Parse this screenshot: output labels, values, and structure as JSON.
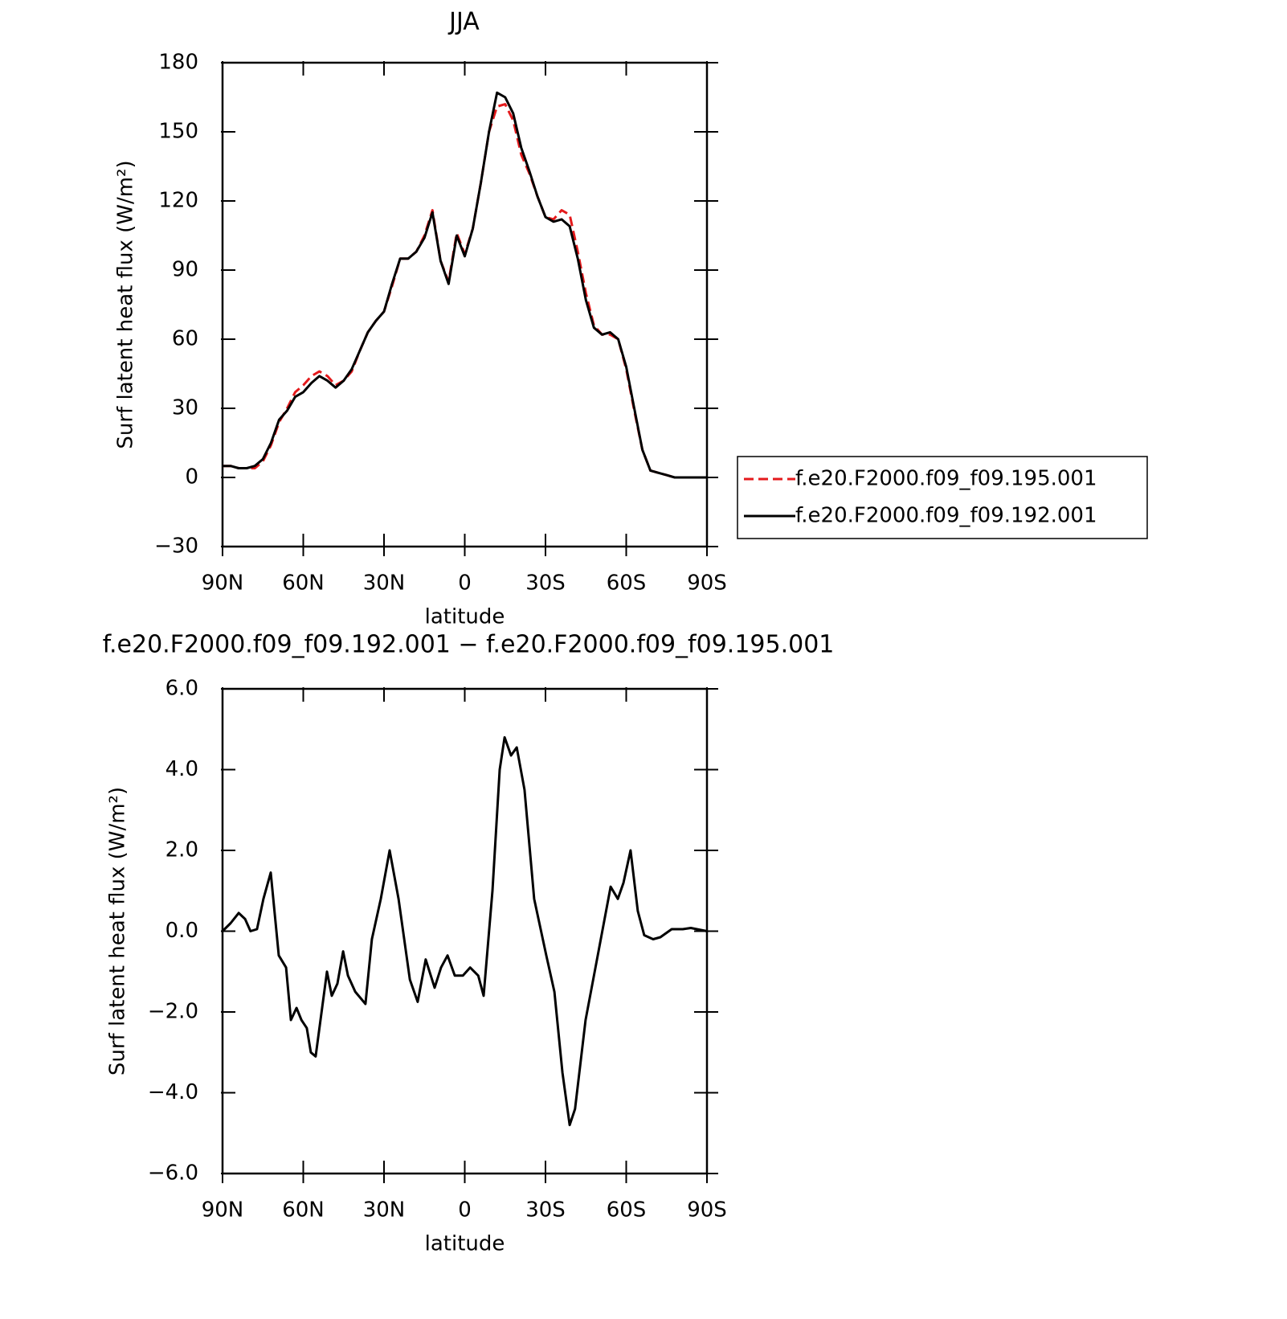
{
  "chart_data": [
    {
      "type": "line",
      "title": "JJA",
      "xlabel": "latitude",
      "ylabel": "Surf latent heat flux (W/m²)",
      "xlim": [
        90,
        -90
      ],
      "xticks": [
        {
          "value": 90,
          "label": "90N"
        },
        {
          "value": 60,
          "label": "60N"
        },
        {
          "value": 30,
          "label": "30N"
        },
        0,
        {
          "value": -30,
          "label": "30S"
        },
        {
          "value": -60,
          "label": "60S"
        },
        {
          "value": -90,
          "label": "90S"
        }
      ],
      "ylim": [
        -30,
        180
      ],
      "yticks": [
        {
          "value": -30,
          "label": "−30"
        },
        0,
        30,
        60,
        90,
        120,
        150,
        180
      ],
      "legend": "outside-right",
      "x": [
        90,
        87,
        84,
        81,
        78,
        75,
        72,
        69,
        66,
        63,
        60,
        57,
        54,
        51,
        48,
        45,
        42,
        39,
        36,
        33,
        30,
        27,
        24,
        21,
        18,
        15,
        12,
        9,
        6,
        3,
        0,
        -3,
        -6,
        -9,
        -12,
        -15,
        -18,
        -21,
        -24,
        -27,
        -30,
        -33,
        -36,
        -39,
        -42,
        -45,
        -48,
        -51,
        -54,
        -57,
        -60,
        -63,
        -66,
        -69,
        -72,
        -75,
        -78,
        -81,
        -84,
        -87,
        -90
      ],
      "series": [
        {
          "name": "f.e20.F2000.f09_f09.195.001",
          "color": "#e41a1c",
          "dash": true,
          "values": [
            5,
            5,
            4,
            4,
            4,
            7,
            14,
            24,
            30,
            37,
            40,
            44,
            46,
            44,
            40,
            42,
            46,
            55,
            63,
            68,
            72,
            83,
            95,
            95,
            98,
            105,
            116,
            94,
            85,
            106,
            97,
            108,
            128,
            150,
            161,
            162,
            155,
            140,
            132,
            122,
            113,
            112,
            116,
            114,
            98,
            80,
            66,
            62,
            62,
            60,
            47,
            29,
            12,
            3,
            2,
            1,
            0,
            0,
            0,
            0,
            0
          ]
        },
        {
          "name": "f.e20.F2000.f09_f09.192.001",
          "color": "#000000",
          "dash": false,
          "values": [
            5,
            5,
            4,
            4,
            5,
            8,
            15,
            25,
            29,
            35,
            37,
            41,
            44,
            42,
            39,
            42,
            47,
            55,
            63,
            68,
            72,
            84,
            95,
            95,
            98,
            104,
            115,
            94,
            84,
            105,
            96,
            108,
            128,
            150,
            167,
            165,
            158,
            143,
            133,
            122,
            113,
            111,
            112,
            109,
            95,
            77,
            65,
            62,
            63,
            60,
            48,
            30,
            12,
            3,
            2,
            1,
            0,
            0,
            0,
            0,
            0
          ]
        }
      ]
    },
    {
      "type": "line",
      "title": "f.e20.F2000.f09_f09.192.001 − f.e20.F2000.f09_f09.195.001",
      "xlabel": "latitude",
      "ylabel": "Surf latent heat flux (W/m²)",
      "xlim": [
        90,
        -90
      ],
      "xticks": [
        {
          "value": 90,
          "label": "90N"
        },
        {
          "value": 60,
          "label": "60N"
        },
        {
          "value": 30,
          "label": "30N"
        },
        0,
        {
          "value": -30,
          "label": "30S"
        },
        {
          "value": -60,
          "label": "60S"
        },
        {
          "value": -90,
          "label": "90S"
        }
      ],
      "ylim": [
        -6,
        6
      ],
      "yticks": [
        {
          "value": -6,
          "label": "−6.0"
        },
        {
          "value": -4,
          "label": "−4.0"
        },
        {
          "value": -2,
          "label": "−2.0"
        },
        {
          "value": 0,
          "label": "0.0"
        },
        {
          "value": 2,
          "label": "2.0"
        },
        {
          "value": 4,
          "label": "4.0"
        },
        {
          "value": 6,
          "label": "6.0"
        }
      ],
      "x": [
        90,
        87,
        84,
        81.6,
        79.6,
        77.2,
        74.8,
        72.1,
        69.1,
        66.4,
        64.6,
        62.5,
        60.7,
        58.7,
        57.2,
        55.4,
        51.2,
        49.4,
        47.3,
        45.2,
        43.4,
        40.7,
        36.9,
        34.5,
        31.2,
        27.9,
        24.6,
        20.4,
        17.5,
        14.5,
        11.2,
        8.8,
        6.4,
        3.7,
        0.7,
        -2,
        -5,
        -7,
        -10.3,
        -13,
        -14.8,
        -17.2,
        -19.3,
        -22.2,
        -25.8,
        -30.3,
        -33.3,
        -36.3,
        -39,
        -41,
        -44.9,
        -49.7,
        -54.2,
        -56.9,
        -59,
        -61.6,
        -64.3,
        -66.7,
        -70,
        -72.7,
        -76.9,
        -81,
        -84,
        -90
      ],
      "series": [
        {
          "color": "#000000",
          "dash": false,
          "values": [
            0,
            0.2,
            0.45,
            0.3,
            0,
            0.05,
            0.8,
            1.45,
            -0.6,
            -0.9,
            -2.2,
            -1.9,
            -2.2,
            -2.4,
            -3,
            -3.1,
            -1,
            -1.6,
            -1.3,
            -0.5,
            -1.1,
            -1.5,
            -1.8,
            -0.2,
            0.8,
            2,
            0.8,
            -1.2,
            -1.75,
            -0.7,
            -1.4,
            -0.9,
            -0.6,
            -1.1,
            -1.1,
            -0.9,
            -1.1,
            -1.6,
            1,
            4,
            4.8,
            4.35,
            4.55,
            3.5,
            0.8,
            -0.6,
            -1.5,
            -3.5,
            -4.8,
            -4.4,
            -2.2,
            -0.5,
            1.1,
            0.8,
            1.2,
            2,
            0.5,
            -0.1,
            -0.2,
            -0.15,
            0.05,
            0.05,
            0.08,
            0
          ]
        }
      ]
    }
  ]
}
